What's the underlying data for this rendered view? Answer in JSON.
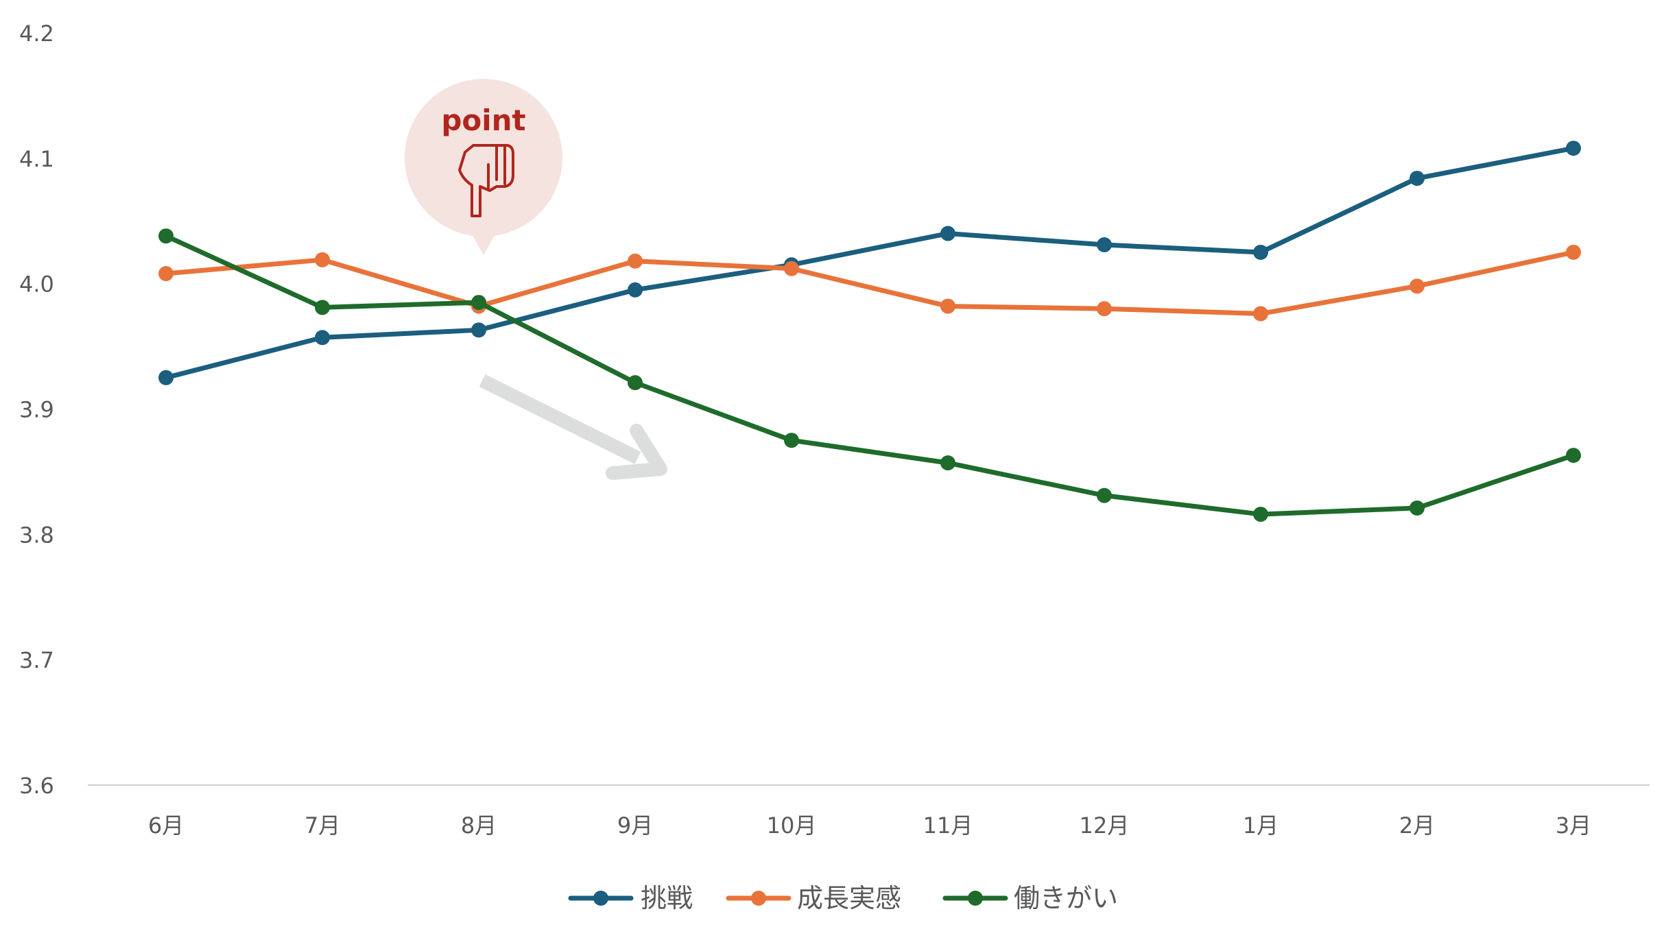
{
  "chart_data": {
    "type": "line",
    "categories": [
      "6月",
      "7月",
      "8月",
      "9月",
      "10月",
      "11月",
      "12月",
      "1月",
      "2月",
      "3月"
    ],
    "ylim": [
      3.6,
      4.2
    ],
    "yticks": [
      "3.6",
      "3.7",
      "3.8",
      "3.9",
      "4.0",
      "4.1",
      "4.2"
    ],
    "grid": false,
    "legend_position": "bottom",
    "series": [
      {
        "name": "挑戦",
        "color": "#1b5e7e",
        "values": [
          3.925,
          3.957,
          3.963,
          3.995,
          4.015,
          4.04,
          4.031,
          4.025,
          4.084,
          4.108
        ]
      },
      {
        "name": "成長実感",
        "color": "#e8733a",
        "values": [
          4.008,
          4.019,
          3.982,
          4.018,
          4.012,
          3.982,
          3.98,
          3.976,
          3.998,
          4.025
        ]
      },
      {
        "name": "働きがい",
        "color": "#1e6b2b",
        "values": [
          4.038,
          3.981,
          3.985,
          3.921,
          3.875,
          3.857,
          3.831,
          3.816,
          3.821,
          3.863
        ]
      }
    ],
    "annotation": {
      "label": "point",
      "icon": "pointing-hand-icon",
      "bubble_color": "#f5e3e0",
      "text_color": "#b0261c",
      "arrow_color": "#dcdddd"
    }
  }
}
